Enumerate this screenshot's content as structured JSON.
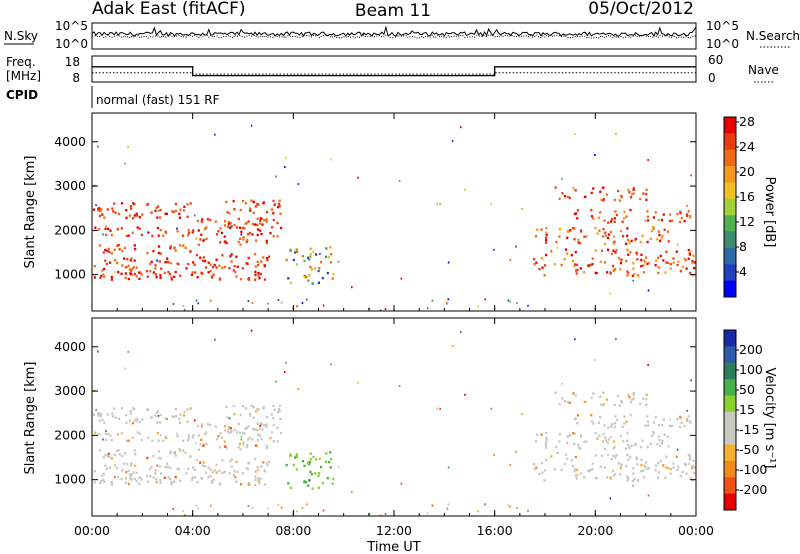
{
  "header": {
    "left": "Adak East (fitACF)",
    "center": "Beam 11",
    "right": "05/Oct/2012"
  },
  "top_panels": {
    "nsky_label": "N.Sky",
    "nsearch_label": "N.Search",
    "nsky_ticks": [
      "10^5",
      "10^0"
    ],
    "nsearch_ticks": [
      "10^5",
      "10^0"
    ],
    "freq_label_1": "Freq.",
    "freq_label_2": "[MHz]",
    "freq_ticks": [
      "18",
      "8"
    ],
    "nave_label": "Nave",
    "nave_ticks": [
      "60",
      "0"
    ],
    "cpid_label": "CPID",
    "cpid_value": "normal (fast) 151 RF"
  },
  "colors": {
    "power_scale": [
      "#0000ff",
      "#2040c0",
      "#2e6aa8",
      "#3d8a70",
      "#4fb050",
      "#a0d23c",
      "#f0c020",
      "#f59a1e",
      "#f06a16",
      "#ec3a10",
      "#e80000"
    ],
    "velocity_scale": [
      "#e80000",
      "#f05010",
      "#f08a18",
      "#f6b030",
      "#c8c8c0",
      "#c8c8c0",
      "#8ad030",
      "#48b048",
      "#2e7d5a",
      "#2d5aa8",
      "#1a2aa8"
    ],
    "ground_scatter": "#c8c8c0"
  },
  "chart_data": [
    {
      "type": "heatmap",
      "panel": "power",
      "ylabel": "Slant Range [km]",
      "xlabel": "",
      "x_ticks": [
        "00:00",
        "04:00",
        "08:00",
        "12:00",
        "16:00",
        "20:00",
        "00:00"
      ],
      "y_ticks": [
        "1000",
        "2000",
        "3000",
        "4000"
      ],
      "xlim_hours": [
        0,
        24
      ],
      "ylim_km": [
        180,
        4650
      ],
      "colorbar_label": "Power [dB]",
      "colorbar_ticks": [
        "4",
        "8",
        "12",
        "16",
        "20",
        "24",
        "28"
      ],
      "colorbar_range": [
        0,
        30
      ]
    },
    {
      "type": "heatmap",
      "panel": "velocity",
      "ylabel": "Slant Range [km]",
      "xlabel": "Time UT",
      "x_ticks": [
        "00:00",
        "04:00",
        "08:00",
        "12:00",
        "16:00",
        "20:00",
        "00:00"
      ],
      "y_ticks": [
        "1000",
        "2000",
        "3000",
        "4000"
      ],
      "xlim_hours": [
        0,
        24
      ],
      "ylim_km": [
        180,
        4650
      ],
      "colorbar_label": "Velocity [m s⁻¹]",
      "colorbar_ticks": [
        "200",
        "100",
        "50",
        "15",
        "-15",
        "-50",
        "-100",
        "-200"
      ],
      "colorbar_range": [
        -250,
        250
      ]
    }
  ],
  "freq_series": {
    "segments": [
      {
        "x0": 0,
        "x1": 4,
        "v": 14
      },
      {
        "x0": 4,
        "x1": 16,
        "v": 10
      },
      {
        "x0": 16,
        "x1": 24,
        "v": 14
      }
    ],
    "ylim": [
      8,
      18
    ]
  },
  "nave_series": {
    "segments": [
      {
        "x0": 0,
        "x1": 4,
        "v": 20
      },
      {
        "x0": 4,
        "x1": 16,
        "v": 16
      },
      {
        "x0": 16,
        "x1": 24,
        "v": 20
      }
    ],
    "ylim": [
      0,
      60
    ]
  }
}
